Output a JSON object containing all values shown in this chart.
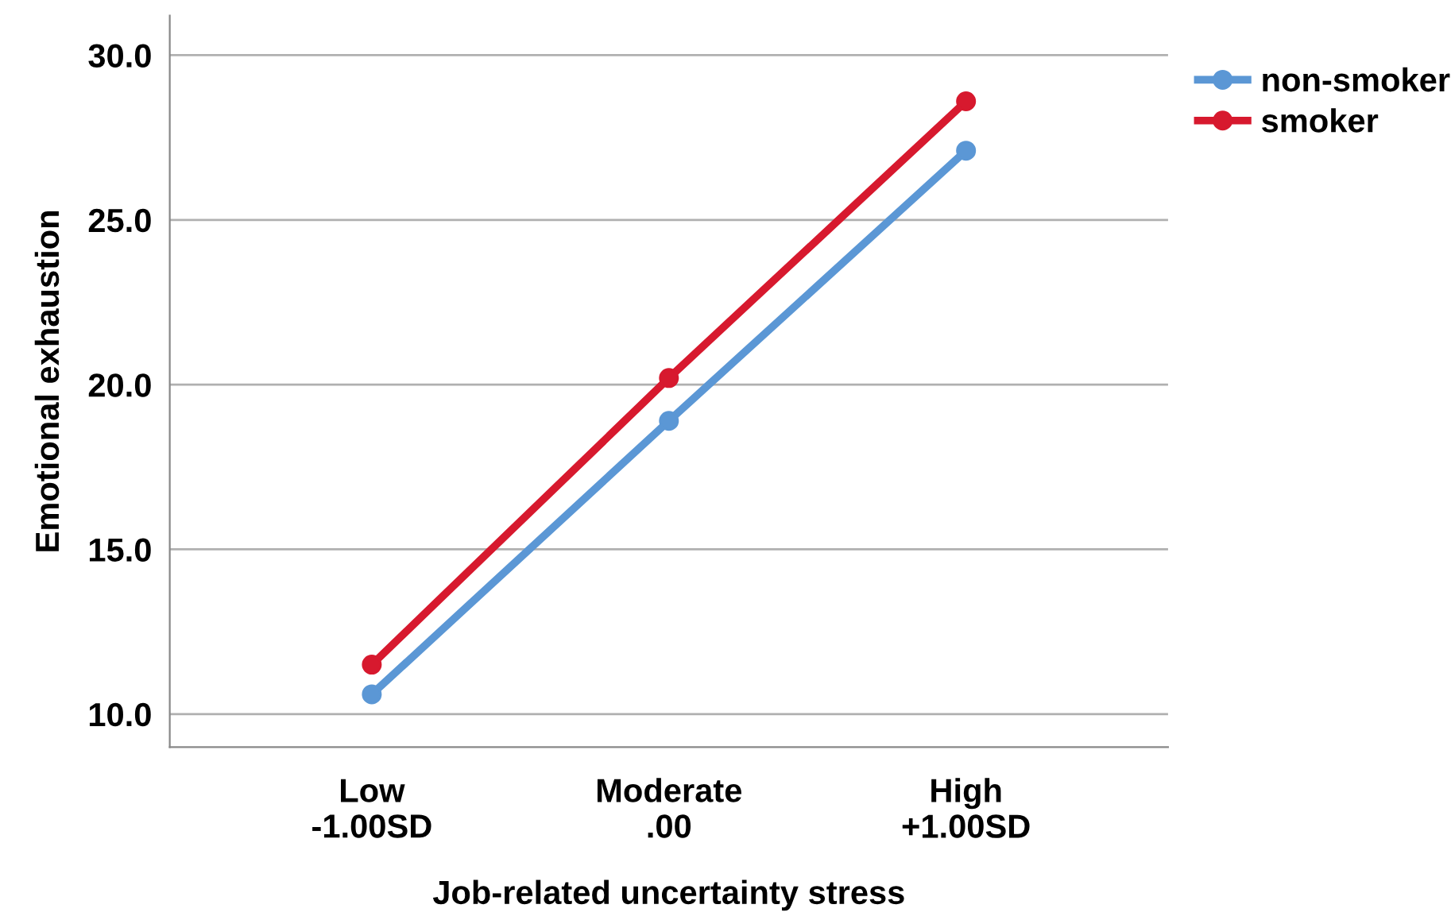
{
  "chart_data": {
    "type": "line",
    "xlabel": "Job-related uncertainty stress",
    "ylabel": "Emotional exhaustion",
    "categories": [
      "Low\n-1.00SD",
      "Moderate\n.00",
      "High\n+1.00SD"
    ],
    "series": [
      {
        "name": "non-smoker",
        "color": "#5b97d5",
        "values": [
          10.6,
          18.9,
          27.1
        ]
      },
      {
        "name": "smoker",
        "color": "#d7192e",
        "values": [
          11.5,
          20.2,
          28.6
        ]
      }
    ],
    "ylim": [
      9.0,
      31.2
    ],
    "yticks": [
      {
        "value": 10,
        "label": "10.0"
      },
      {
        "value": 15,
        "label": "15.0"
      },
      {
        "value": 20,
        "label": "20.0"
      },
      {
        "value": 25,
        "label": "25.0"
      },
      {
        "value": 30,
        "label": "30.0"
      }
    ],
    "grid": "y",
    "legend": "top right",
    "marker": "circle",
    "line_style": "solid"
  }
}
